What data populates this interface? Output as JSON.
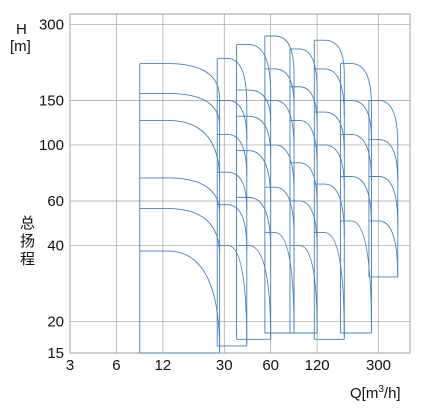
{
  "chart_data": {
    "type": "line",
    "title": "",
    "ylabel_unit": "H",
    "ylabel_unit_bracket": "[m]",
    "ylabel_cn": [
      "总",
      "扬",
      "程"
    ],
    "xlabel_prefix": "Q[m",
    "xlabel_sup": "3",
    "xlabel_suffix": "/h]",
    "x_scale": "log",
    "y_scale": "log",
    "xlim": [
      3,
      480
    ],
    "ylim": [
      15,
      330
    ],
    "x_ticks": [
      3,
      6,
      12,
      30,
      60,
      120,
      300
    ],
    "y_ticks": [
      15,
      20,
      40,
      60,
      100,
      150,
      300
    ],
    "grid": true,
    "note": "pump selection chart: each bordered region is one pump model's operating range (flow 8.5–~400 m³/h, head 15–~280 m)",
    "regions": [
      {
        "x0": 8.5,
        "x1": 28,
        "h_bottom": 15,
        "bands": [
          38,
          56,
          74,
          125,
          160,
          210
        ]
      },
      {
        "x0": 27,
        "x1": 42,
        "h_bottom": 16,
        "bands": [
          40,
          58,
          78,
          110,
          150,
          220
        ]
      },
      {
        "x0": 36,
        "x1": 60,
        "h_bottom": 17,
        "bands": [
          40,
          62,
          95,
          130,
          165,
          250
        ]
      },
      {
        "x0": 55,
        "x1": 85,
        "h_bottom": 18,
        "bands": [
          45,
          68,
          100,
          150,
          200,
          270
        ]
      },
      {
        "x0": 80,
        "x1": 120,
        "h_bottom": 18,
        "bands": [
          40,
          60,
          85,
          125,
          170,
          240
        ]
      },
      {
        "x0": 115,
        "x1": 180,
        "h_bottom": 17,
        "bands": [
          45,
          70,
          100,
          135,
          200,
          260
        ]
      },
      {
        "x0": 170,
        "x1": 270,
        "h_bottom": 18,
        "bands": [
          50,
          75,
          110,
          150,
          210
        ]
      },
      {
        "x0": 260,
        "x1": 400,
        "h_bottom": 30,
        "bands": [
          50,
          75,
          105,
          150
        ]
      }
    ]
  }
}
